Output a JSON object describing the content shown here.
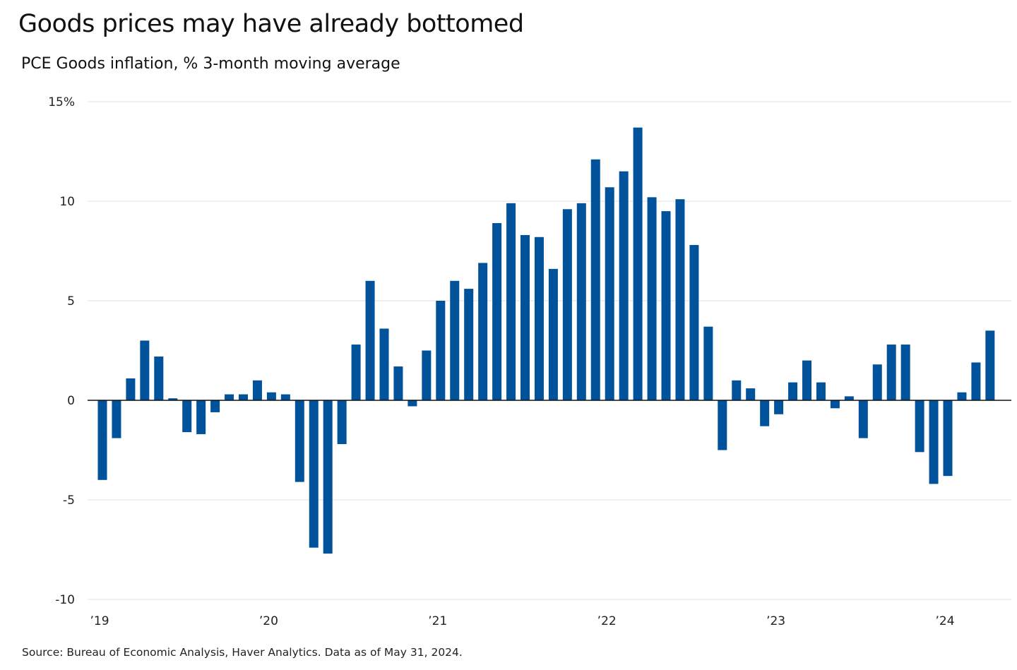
{
  "chart_data": {
    "type": "bar",
    "title": "Goods prices may have already bottomed",
    "subtitle": "PCE Goods inflation, % 3-month moving average",
    "source": "Source: Bureau of Economic Analysis, Haver Analytics. Data as of May 31, 2024.",
    "ylim": [
      -10,
      15
    ],
    "yticks": [
      {
        "value": 15,
        "label": "15%"
      },
      {
        "value": 10,
        "label": "10"
      },
      {
        "value": 5,
        "label": "5"
      },
      {
        "value": 0,
        "label": "0"
      },
      {
        "value": -5,
        "label": "-5"
      },
      {
        "value": -10,
        "label": "-10"
      }
    ],
    "xticks": [
      {
        "index": 0,
        "label": "’19"
      },
      {
        "index": 12,
        "label": "’20"
      },
      {
        "index": 24,
        "label": "’21"
      },
      {
        "index": 36,
        "label": "’22"
      },
      {
        "index": 48,
        "label": "’23"
      },
      {
        "index": 60,
        "label": "’24"
      }
    ],
    "bar_color": "#00529b",
    "series": [
      {
        "name": "PCE Goods inflation, % 3-month moving average",
        "categories": [
          "Jan 2019",
          "Feb 2019",
          "Mar 2019",
          "Apr 2019",
          "May 2019",
          "Jun 2019",
          "Jul 2019",
          "Aug 2019",
          "Sep 2019",
          "Oct 2019",
          "Nov 2019",
          "Dec 2019",
          "Jan 2020",
          "Feb 2020",
          "Mar 2020",
          "Apr 2020",
          "May 2020",
          "Jun 2020",
          "Jul 2020",
          "Aug 2020",
          "Sep 2020",
          "Oct 2020",
          "Nov 2020",
          "Dec 2020",
          "Jan 2021",
          "Feb 2021",
          "Mar 2021",
          "Apr 2021",
          "May 2021",
          "Jun 2021",
          "Jul 2021",
          "Aug 2021",
          "Sep 2021",
          "Oct 2021",
          "Nov 2021",
          "Dec 2021",
          "Jan 2022",
          "Feb 2022",
          "Mar 2022",
          "Apr 2022",
          "May 2022",
          "Jun 2022",
          "Jul 2022",
          "Aug 2022",
          "Sep 2022",
          "Oct 2022",
          "Nov 2022",
          "Dec 2022",
          "Jan 2023",
          "Feb 2023",
          "Mar 2023",
          "Apr 2023",
          "May 2023",
          "Jun 2023",
          "Jul 2023",
          "Aug 2023",
          "Sep 2023",
          "Oct 2023",
          "Nov 2023",
          "Dec 2023",
          "Jan 2024",
          "Feb 2024",
          "Mar 2024",
          "Apr 2024"
        ],
        "values": [
          -4.0,
          -1.9,
          1.1,
          3.0,
          2.2,
          0.1,
          -1.6,
          -1.7,
          -0.6,
          0.3,
          0.3,
          1.0,
          0.4,
          0.3,
          -4.1,
          -7.4,
          -7.7,
          -2.2,
          2.8,
          6.0,
          3.6,
          1.7,
          -0.3,
          2.5,
          5.0,
          6.0,
          5.6,
          6.9,
          8.9,
          9.9,
          8.3,
          8.2,
          6.6,
          9.6,
          9.9,
          12.1,
          10.7,
          11.5,
          13.7,
          10.2,
          9.5,
          10.1,
          7.8,
          3.7,
          -2.5,
          1.0,
          0.6,
          -1.3,
          -0.7,
          0.9,
          2.0,
          0.9,
          -0.4,
          0.2,
          -1.9,
          1.8,
          2.8,
          2.8,
          -2.6,
          -4.2,
          -3.8,
          0.4,
          1.9,
          3.5
        ]
      }
    ]
  }
}
